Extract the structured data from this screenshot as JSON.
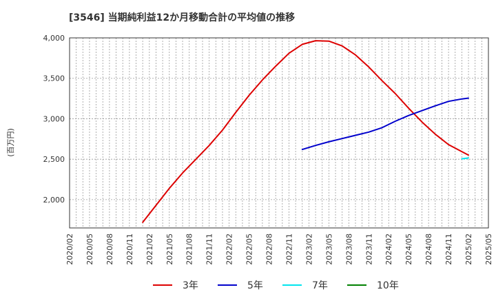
{
  "chart_data": {
    "type": "line",
    "title": "[3546]  当期純利益12か月移動合計の平均値の推移",
    "ylabel": "(百万円)",
    "xlabel": "",
    "ylim": [
      1650,
      4000
    ],
    "yticks": [
      2000,
      2500,
      3000,
      3500,
      4000
    ],
    "ytick_labels": [
      "2,000",
      "2,500",
      "3,000",
      "3,500",
      "4,000"
    ],
    "x_range": [
      "2020/02",
      "2025/05"
    ],
    "x_ticks": [
      "2020/02",
      "2020/05",
      "2020/08",
      "2020/11",
      "2021/02",
      "2021/05",
      "2021/08",
      "2021/11",
      "2022/02",
      "2022/05",
      "2022/08",
      "2022/11",
      "2023/02",
      "2023/05",
      "2023/08",
      "2023/11",
      "2024/02",
      "2024/05",
      "2024/08",
      "2024/11",
      "2025/02",
      "2025/05"
    ],
    "grid": true,
    "series": [
      {
        "name": "3年",
        "color": "#dd0000",
        "x": [
          "2021/01",
          "2021/03",
          "2021/05",
          "2021/07",
          "2021/09",
          "2021/11",
          "2022/01",
          "2022/03",
          "2022/05",
          "2022/07",
          "2022/09",
          "2022/11",
          "2023/01",
          "2023/03",
          "2023/05",
          "2023/07",
          "2023/09",
          "2023/11",
          "2024/01",
          "2024/03",
          "2024/05",
          "2024/07",
          "2024/09",
          "2024/11",
          "2025/02"
        ],
        "y": [
          1720,
          1930,
          2140,
          2330,
          2500,
          2670,
          2860,
          3080,
          3290,
          3480,
          3650,
          3810,
          3920,
          3965,
          3960,
          3900,
          3790,
          3640,
          3470,
          3310,
          3130,
          2960,
          2810,
          2680,
          2550
        ]
      },
      {
        "name": "5年",
        "color": "#0000cc",
        "x": [
          "2023/01",
          "2023/03",
          "2023/05",
          "2023/07",
          "2023/09",
          "2023/11",
          "2024/01",
          "2024/03",
          "2024/05",
          "2024/07",
          "2024/09",
          "2024/11",
          "2025/01",
          "2025/02"
        ],
        "y": [
          2620,
          2670,
          2715,
          2755,
          2795,
          2835,
          2890,
          2970,
          3040,
          3100,
          3160,
          3215,
          3245,
          3255
        ]
      },
      {
        "name": "7年",
        "color": "#00e5ee",
        "x": [
          "2025/01",
          "2025/02"
        ],
        "y": [
          2505,
          2515
        ]
      },
      {
        "name": "10年",
        "color": "#008000",
        "x": [],
        "y": []
      }
    ]
  }
}
